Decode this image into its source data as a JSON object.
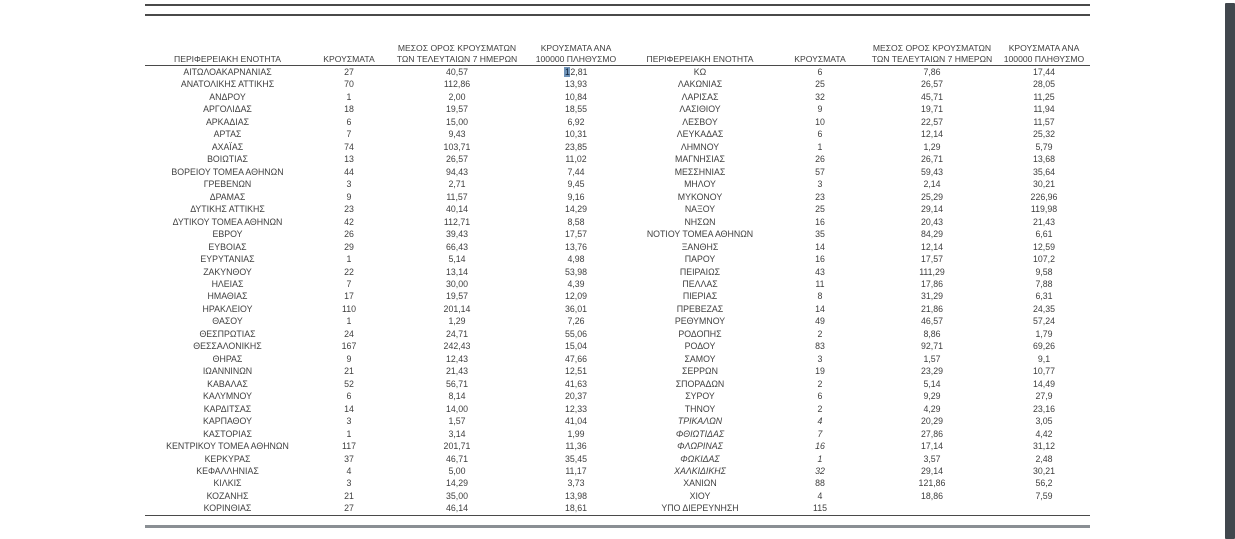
{
  "window": {
    "background": "#ffffff",
    "scrollbar_color": "#41474d",
    "selection_highlight_color": "#6f93b8"
  },
  "table": {
    "headers": {
      "region": "ΠΕΡΙΦΕΡΕΙΑΚΗ ΕΝΟΤΗΤΑ",
      "cases": "ΚΡΟΥΣΜΑΤΑ",
      "avg7": "ΜΕΣΟΣ ΟΡΟΣ ΚΡΟΥΣΜΑΤΩΝ ΤΩΝ ΤΕΛΕΥΤΑΙΩΝ 7 ΗΜΕΡΩΝ",
      "per100k": "ΚΡΟΥΣΜΑΤΑ ΑΝΑ 100000 ΠΛΗΘΥΣΜΟ"
    },
    "left_rows": [
      {
        "name": "ΑΙΤΩΛΟΑΚΑΡΝΑΝΙΑΣ",
        "cases": "27",
        "avg7": "40,57",
        "per100k": "12,81",
        "hl_first": true
      },
      {
        "name": "ΑΝΑΤΟΛΙΚΗΣ ΑΤΤΙΚΗΣ",
        "cases": "70",
        "avg7": "112,86",
        "per100k": "13,93"
      },
      {
        "name": "ΑΝΔΡΟΥ",
        "cases": "1",
        "avg7": "2,00",
        "per100k": "10,84"
      },
      {
        "name": "ΑΡΓΟΛΙΔΑΣ",
        "cases": "18",
        "avg7": "19,57",
        "per100k": "18,55"
      },
      {
        "name": "ΑΡΚΑΔΙΑΣ",
        "cases": "6",
        "avg7": "15,00",
        "per100k": "6,92"
      },
      {
        "name": "ΑΡΤΑΣ",
        "cases": "7",
        "avg7": "9,43",
        "per100k": "10,31"
      },
      {
        "name": "ΑΧΑΪΑΣ",
        "cases": "74",
        "avg7": "103,71",
        "per100k": "23,85"
      },
      {
        "name": "ΒΟΙΩΤΙΑΣ",
        "cases": "13",
        "avg7": "26,57",
        "per100k": "11,02"
      },
      {
        "name": "ΒΟΡΕΙΟΥ ΤΟΜΕΑ ΑΘΗΝΩΝ",
        "cases": "44",
        "avg7": "94,43",
        "per100k": "7,44"
      },
      {
        "name": "ΓΡΕΒΕΝΩΝ",
        "cases": "3",
        "avg7": "2,71",
        "per100k": "9,45"
      },
      {
        "name": "ΔΡΑΜΑΣ",
        "cases": "9",
        "avg7": "11,57",
        "per100k": "9,16"
      },
      {
        "name": "ΔΥΤΙΚΗΣ ΑΤΤΙΚΗΣ",
        "cases": "23",
        "avg7": "40,14",
        "per100k": "14,29"
      },
      {
        "name": "ΔΥΤΙΚΟΥ ΤΟΜΕΑ ΑΘΗΝΩΝ",
        "cases": "42",
        "avg7": "112,71",
        "per100k": "8,58"
      },
      {
        "name": "ΕΒΡΟΥ",
        "cases": "26",
        "avg7": "39,43",
        "per100k": "17,57"
      },
      {
        "name": "ΕΥΒΟΙΑΣ",
        "cases": "29",
        "avg7": "66,43",
        "per100k": "13,76"
      },
      {
        "name": "ΕΥΡΥΤΑΝΙΑΣ",
        "cases": "1",
        "avg7": "5,14",
        "per100k": "4,98"
      },
      {
        "name": "ΖΑΚΥΝΘΟΥ",
        "cases": "22",
        "avg7": "13,14",
        "per100k": "53,98"
      },
      {
        "name": "ΗΛΕΙΑΣ",
        "cases": "7",
        "avg7": "30,00",
        "per100k": "4,39"
      },
      {
        "name": "ΗΜΑΘΙΑΣ",
        "cases": "17",
        "avg7": "19,57",
        "per100k": "12,09"
      },
      {
        "name": "ΗΡΑΚΛΕΙΟΥ",
        "cases": "110",
        "avg7": "201,14",
        "per100k": "36,01"
      },
      {
        "name": "ΘΑΣΟΥ",
        "cases": "1",
        "avg7": "1,29",
        "per100k": "7,26"
      },
      {
        "name": "ΘΕΣΠΡΩΤΙΑΣ",
        "cases": "24",
        "avg7": "24,71",
        "per100k": "55,06"
      },
      {
        "name": "ΘΕΣΣΑΛΟΝΙΚΗΣ",
        "cases": "167",
        "avg7": "242,43",
        "per100k": "15,04"
      },
      {
        "name": "ΘΗΡΑΣ",
        "cases": "9",
        "avg7": "12,43",
        "per100k": "47,66"
      },
      {
        "name": "ΙΩΑΝΝΙΝΩΝ",
        "cases": "21",
        "avg7": "21,43",
        "per100k": "12,51"
      },
      {
        "name": "ΚΑΒΑΛΑΣ",
        "cases": "52",
        "avg7": "56,71",
        "per100k": "41,63"
      },
      {
        "name": "ΚΑΛΥΜΝΟΥ",
        "cases": "6",
        "avg7": "8,14",
        "per100k": "20,37"
      },
      {
        "name": "ΚΑΡΔΙΤΣΑΣ",
        "cases": "14",
        "avg7": "14,00",
        "per100k": "12,33"
      },
      {
        "name": "ΚΑΡΠΑΘΟΥ",
        "cases": "3",
        "avg7": "1,57",
        "per100k": "41,04"
      },
      {
        "name": "ΚΑΣΤΟΡΙΑΣ",
        "cases": "1",
        "avg7": "3,14",
        "per100k": "1,99"
      },
      {
        "name": "ΚΕΝΤΡΙΚΟΥ ΤΟΜΕΑ ΑΘΗΝΩΝ",
        "cases": "117",
        "avg7": "201,71",
        "per100k": "11,36"
      },
      {
        "name": "ΚΕΡΚΥΡΑΣ",
        "cases": "37",
        "avg7": "46,71",
        "per100k": "35,45"
      },
      {
        "name": "ΚΕΦΑΛΛΗΝΙΑΣ",
        "cases": "4",
        "avg7": "5,00",
        "per100k": "11,17"
      },
      {
        "name": "ΚΙΛΚΙΣ",
        "cases": "3",
        "avg7": "14,29",
        "per100k": "3,73"
      },
      {
        "name": "ΚΟΖΑΝΗΣ",
        "cases": "21",
        "avg7": "35,00",
        "per100k": "13,98"
      },
      {
        "name": "ΚΟΡΙΝΘΙΑΣ",
        "cases": "27",
        "avg7": "46,14",
        "per100k": "18,61"
      }
    ],
    "right_rows": [
      {
        "name": "ΚΩ",
        "cases": "6",
        "avg7": "7,86",
        "per100k": "17,44"
      },
      {
        "name": "ΛΑΚΩΝΙΑΣ",
        "cases": "25",
        "avg7": "26,57",
        "per100k": "28,05"
      },
      {
        "name": "ΛΑΡΙΣΑΣ",
        "cases": "32",
        "avg7": "45,71",
        "per100k": "11,25"
      },
      {
        "name": "ΛΑΣΙΘΙΟΥ",
        "cases": "9",
        "avg7": "19,71",
        "per100k": "11,94"
      },
      {
        "name": "ΛΕΣΒΟΥ",
        "cases": "10",
        "avg7": "22,57",
        "per100k": "11,57"
      },
      {
        "name": "ΛΕΥΚΑΔΑΣ",
        "cases": "6",
        "avg7": "12,14",
        "per100k": "25,32"
      },
      {
        "name": "ΛΗΜΝΟΥ",
        "cases": "1",
        "avg7": "1,29",
        "per100k": "5,79"
      },
      {
        "name": "ΜΑΓΝΗΣΙΑΣ",
        "cases": "26",
        "avg7": "26,71",
        "per100k": "13,68"
      },
      {
        "name": "ΜΕΣΣΗΝΙΑΣ",
        "cases": "57",
        "avg7": "59,43",
        "per100k": "35,64"
      },
      {
        "name": "ΜΗΛΟΥ",
        "cases": "3",
        "avg7": "2,14",
        "per100k": "30,21"
      },
      {
        "name": "ΜΥΚΟΝΟΥ",
        "cases": "23",
        "avg7": "25,29",
        "per100k": "226,96"
      },
      {
        "name": "ΝΑΞΟΥ",
        "cases": "25",
        "avg7": "29,14",
        "per100k": "119,98"
      },
      {
        "name": "ΝΗΣΩΝ",
        "cases": "16",
        "avg7": "20,43",
        "per100k": "21,43"
      },
      {
        "name": "ΝΟΤΙΟΥ ΤΟΜΕΑ ΑΘΗΝΩΝ",
        "cases": "35",
        "avg7": "84,29",
        "per100k": "6,61"
      },
      {
        "name": "ΞΑΝΘΗΣ",
        "cases": "14",
        "avg7": "12,14",
        "per100k": "12,59"
      },
      {
        "name": "ΠΑΡΟΥ",
        "cases": "16",
        "avg7": "17,57",
        "per100k": "107,2"
      },
      {
        "name": "ΠΕΙΡΑΙΩΣ",
        "cases": "43",
        "avg7": "111,29",
        "per100k": "9,58"
      },
      {
        "name": "ΠΕΛΛΑΣ",
        "cases": "11",
        "avg7": "17,86",
        "per100k": "7,88"
      },
      {
        "name": "ΠΙΕΡΙΑΣ",
        "cases": "8",
        "avg7": "31,29",
        "per100k": "6,31"
      },
      {
        "name": "ΠΡΕΒΕΖΑΣ",
        "cases": "14",
        "avg7": "21,86",
        "per100k": "24,35"
      },
      {
        "name": "ΡΕΘΥΜΝΟΥ",
        "cases": "49",
        "avg7": "46,57",
        "per100k": "57,24"
      },
      {
        "name": "ΡΟΔΟΠΗΣ",
        "cases": "2",
        "avg7": "8,86",
        "per100k": "1,79"
      },
      {
        "name": "ΡΟΔΟΥ",
        "cases": "83",
        "avg7": "92,71",
        "per100k": "69,26"
      },
      {
        "name": "ΣΑΜΟΥ",
        "cases": "3",
        "avg7": "1,57",
        "per100k": "9,1"
      },
      {
        "name": "ΣΕΡΡΩΝ",
        "cases": "19",
        "avg7": "23,29",
        "per100k": "10,77"
      },
      {
        "name": "ΣΠΟΡΑΔΩΝ",
        "cases": "2",
        "avg7": "5,14",
        "per100k": "14,49"
      },
      {
        "name": "ΣΥΡΟΥ",
        "cases": "6",
        "avg7": "9,29",
        "per100k": "27,9"
      },
      {
        "name": "ΤΗΝΟΥ",
        "cases": "2",
        "avg7": "4,29",
        "per100k": "23,16"
      },
      {
        "name": "ΤΡΙΚΑΛΩΝ",
        "cases": "4",
        "avg7": "20,29",
        "per100k": "3,05",
        "italic": true
      },
      {
        "name": "ΦΘΙΩΤΙΔΑΣ",
        "cases": "7",
        "avg7": "27,86",
        "per100k": "4,42",
        "italic": true
      },
      {
        "name": "ΦΛΩΡΙΝΑΣ",
        "cases": "16",
        "avg7": "17,14",
        "per100k": "31,12",
        "italic": true
      },
      {
        "name": "ΦΩΚΙΔΑΣ",
        "cases": "1",
        "avg7": "3,57",
        "per100k": "2,48",
        "italic": true
      },
      {
        "name": "ΧΑΛΚΙΔΙΚΗΣ",
        "cases": "32",
        "avg7": "29,14",
        "per100k": "30,21",
        "italic": true
      },
      {
        "name": "ΧΑΝΙΩΝ",
        "cases": "88",
        "avg7": "121,86",
        "per100k": "56,2"
      },
      {
        "name": "ΧΙΟΥ",
        "cases": "4",
        "avg7": "18,86",
        "per100k": "7,59"
      },
      {
        "name": "ΥΠΟ ΔΙΕΡΕΥΝΗΣΗ",
        "cases": "115",
        "avg7": "",
        "per100k": ""
      }
    ]
  }
}
